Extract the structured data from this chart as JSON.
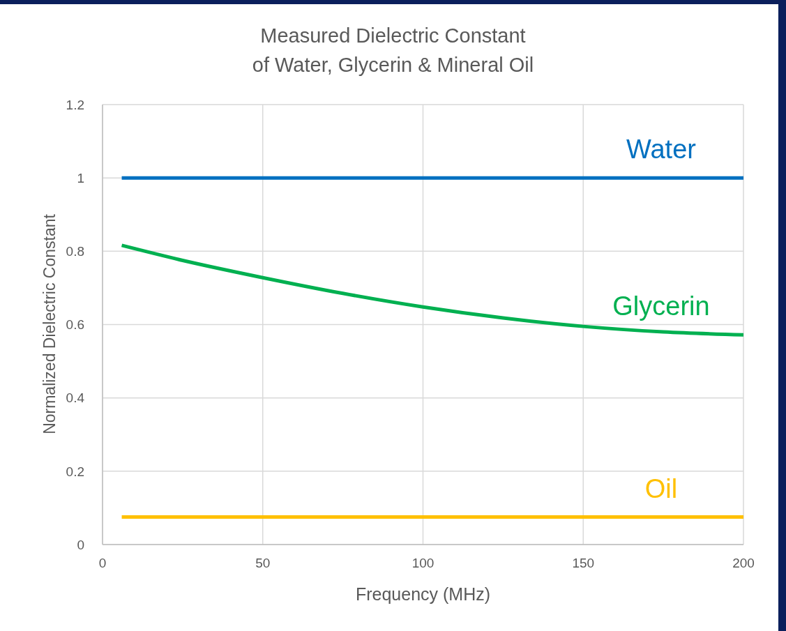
{
  "chart_data": {
    "type": "line",
    "title": "Measured Dielectric Constant\nof Water, Glycerin & Mineral Oil",
    "xlabel": "Frequency (MHz)",
    "ylabel": "Normalized Dielectric Constant",
    "xlim": [
      0,
      200
    ],
    "xticks": [
      0,
      50,
      100,
      150,
      200
    ],
    "ylim": [
      0,
      1.2
    ],
    "yticks": [
      0,
      {
        "value": 0.2,
        "label": "0.2"
      },
      {
        "value": 0.4,
        "label": "0.4"
      },
      {
        "value": 0.6,
        "label": "0.6"
      },
      {
        "value": 0.8,
        "label": "0.8"
      },
      1,
      {
        "value": 1.2,
        "label": "1.2"
      }
    ],
    "grid": true,
    "legend": false,
    "line_style": "solid",
    "series": [
      {
        "name": "Water",
        "color": "#0070c0",
        "x": [
          6,
          200
        ],
        "values": [
          1,
          1
        ]
      },
      {
        "name": "Glycerin",
        "color": "#00b050",
        "x": [
          6,
          25,
          50,
          75,
          100,
          125,
          150,
          175,
          200
        ],
        "values": [
          0.816,
          0.775,
          0.728,
          0.685,
          0.648,
          0.618,
          0.595,
          0.58,
          0.572
        ]
      },
      {
        "name": "Oil",
        "color": "#ffc000",
        "x": [
          6,
          200
        ],
        "values": [
          0.075,
          0.075
        ]
      }
    ]
  }
}
